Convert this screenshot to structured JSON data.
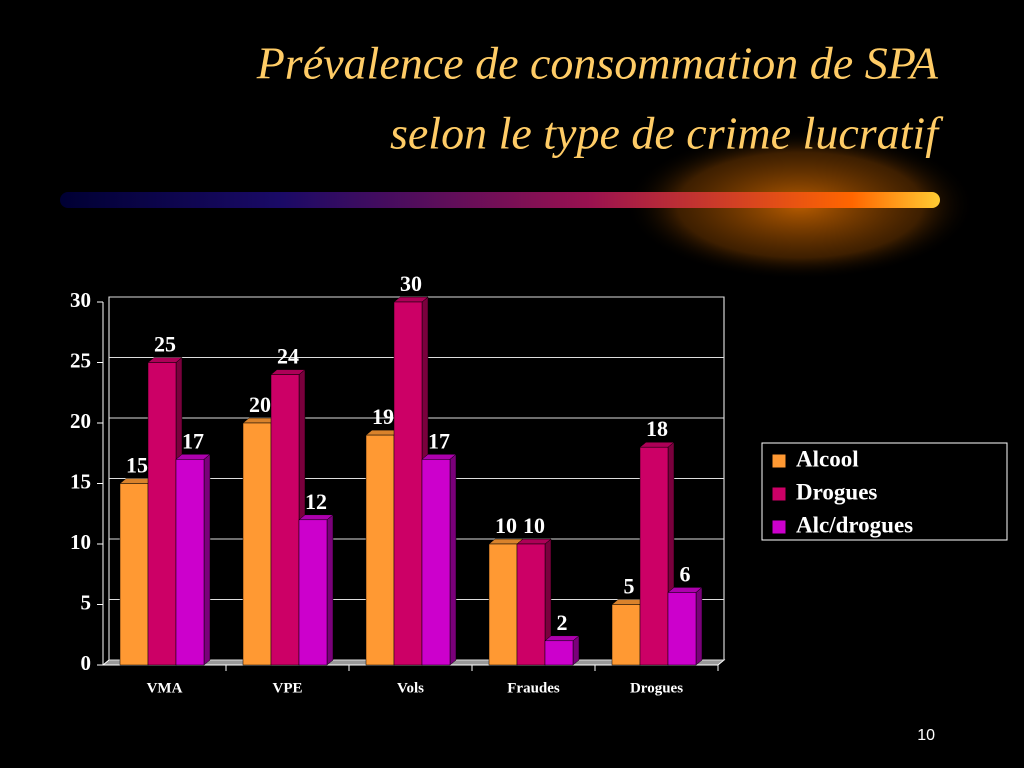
{
  "chart_data": {
    "type": "bar3d",
    "title": [
      "Prévalence de consommation de SPA",
      "selon le type de crime lucratif"
    ],
    "categories": [
      "VMA",
      "VPE",
      "Vols",
      "Fraudes",
      "Drogues"
    ],
    "series": [
      {
        "name": "Alcool",
        "color": "#ff9933",
        "values": [
          15,
          20,
          19,
          10,
          5
        ]
      },
      {
        "name": "Drogues",
        "color": "#cc0066",
        "values": [
          25,
          24,
          30,
          10,
          18
        ]
      },
      {
        "name": "Alc/drogues",
        "color": "#cc00cc",
        "values": [
          17,
          12,
          17,
          2,
          6
        ]
      }
    ],
    "ylim": [
      0,
      30
    ],
    "yticks": [
      0,
      5,
      10,
      15,
      20,
      25,
      30
    ],
    "grid": true,
    "legend": "right",
    "page_number": "10"
  }
}
